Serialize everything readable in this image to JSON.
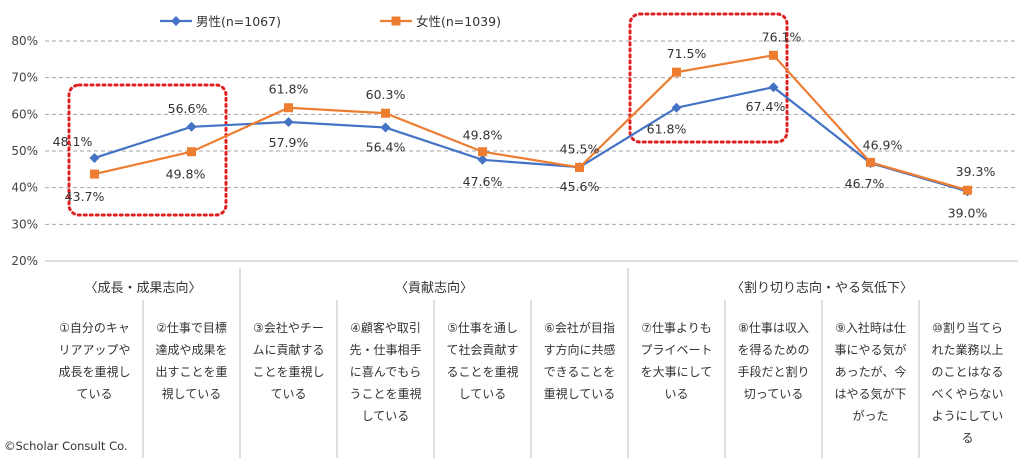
{
  "chart_data": {
    "type": "line",
    "ylim": [
      20,
      80
    ],
    "yticks": [
      "20%",
      "30%",
      "40%",
      "50%",
      "60%",
      "70%",
      "80%"
    ],
    "categories": [
      "①自分のキャリアアップや成長を重視している",
      "②仕事で目標達成や成果を出すことを重視している",
      "③会社やチームに貢献することを重視している",
      "④顧客や取引先・仕事相手に喜んでもらうことを重視している",
      "⑤仕事を通して社会貢献することを重視している",
      "⑥会社が目指す方向に共感できることを重視している",
      "⑦仕事よりもプライベートを大事にしている",
      "⑧仕事は収入を得るための手段だと割り切っている",
      "⑨入社時は仕事にやる気があったが、今はやる気が下がった",
      "⑩割り当てられた業務以上のことはなるべくやらないようにしている"
    ],
    "category_lines": [
      [
        "①自分のキャ",
        "リアアップや",
        "成長を重視し",
        "ている"
      ],
      [
        "②仕事で目標",
        "達成や成果を",
        "出すことを重",
        "視している"
      ],
      [
        "③会社やチー",
        "ムに貢献する",
        "ことを重視し",
        "ている"
      ],
      [
        "④顧客や取引",
        "先・仕事相手",
        "に喜んでもら",
        "うことを重視",
        "している"
      ],
      [
        "⑤仕事を通し",
        "て社会貢献す",
        "ることを重視",
        "している"
      ],
      [
        "⑥会社が目指",
        "す方向に共感",
        "できることを",
        "重視している"
      ],
      [
        "⑦仕事よりも",
        "プライベート",
        "を大事にして",
        "いる"
      ],
      [
        "⑧仕事は収入",
        "を得るための",
        "手段だと割り",
        "切っている"
      ],
      [
        "⑨入社時は仕",
        "事にやる気が",
        "あったが、今",
        "はやる気が下",
        "がった"
      ],
      [
        "⑩割り当てら",
        "れた業務以上",
        "のことはなる",
        "べくやらない",
        "ようにしてい",
        "る"
      ]
    ],
    "groups": [
      {
        "label": "〈成長・成果志向〉",
        "start": 0,
        "end": 1
      },
      {
        "label": "〈貢献志向〉",
        "start": 2,
        "end": 5
      },
      {
        "label": "〈割り切り志向・やる気低下〉",
        "start": 6,
        "end": 9
      }
    ],
    "series": [
      {
        "name": "男性(n=1067)",
        "color": "#4472C4",
        "marker": "diamond",
        "values": [
          48.1,
          56.6,
          57.9,
          56.4,
          47.6,
          45.6,
          61.8,
          67.4,
          46.7,
          39.0
        ],
        "labels": [
          "48.1%",
          "56.6%",
          "57.9%",
          "56.4%",
          "47.6%",
          "45.6%",
          "61.8%",
          "67.4%",
          "46.7%",
          "39.0%"
        ]
      },
      {
        "name": "女性(n=1039)",
        "color": "#ED7D31",
        "marker": "square",
        "values": [
          43.7,
          49.8,
          61.8,
          60.3,
          49.8,
          45.5,
          71.5,
          76.1,
          46.9,
          39.3
        ],
        "labels": [
          "43.7%",
          "49.8%",
          "61.8%",
          "60.3%",
          "49.8%",
          "45.5%",
          "71.5%",
          "76.1%",
          "46.9%",
          "39.3%"
        ]
      }
    ],
    "highlights": [
      {
        "categories": [
          0,
          1
        ],
        "color": "#E02020"
      },
      {
        "categories": [
          6,
          7
        ],
        "color": "#E02020"
      }
    ],
    "grid": true,
    "legend_position": "top"
  },
  "credit": "©Scholar Consult Co."
}
